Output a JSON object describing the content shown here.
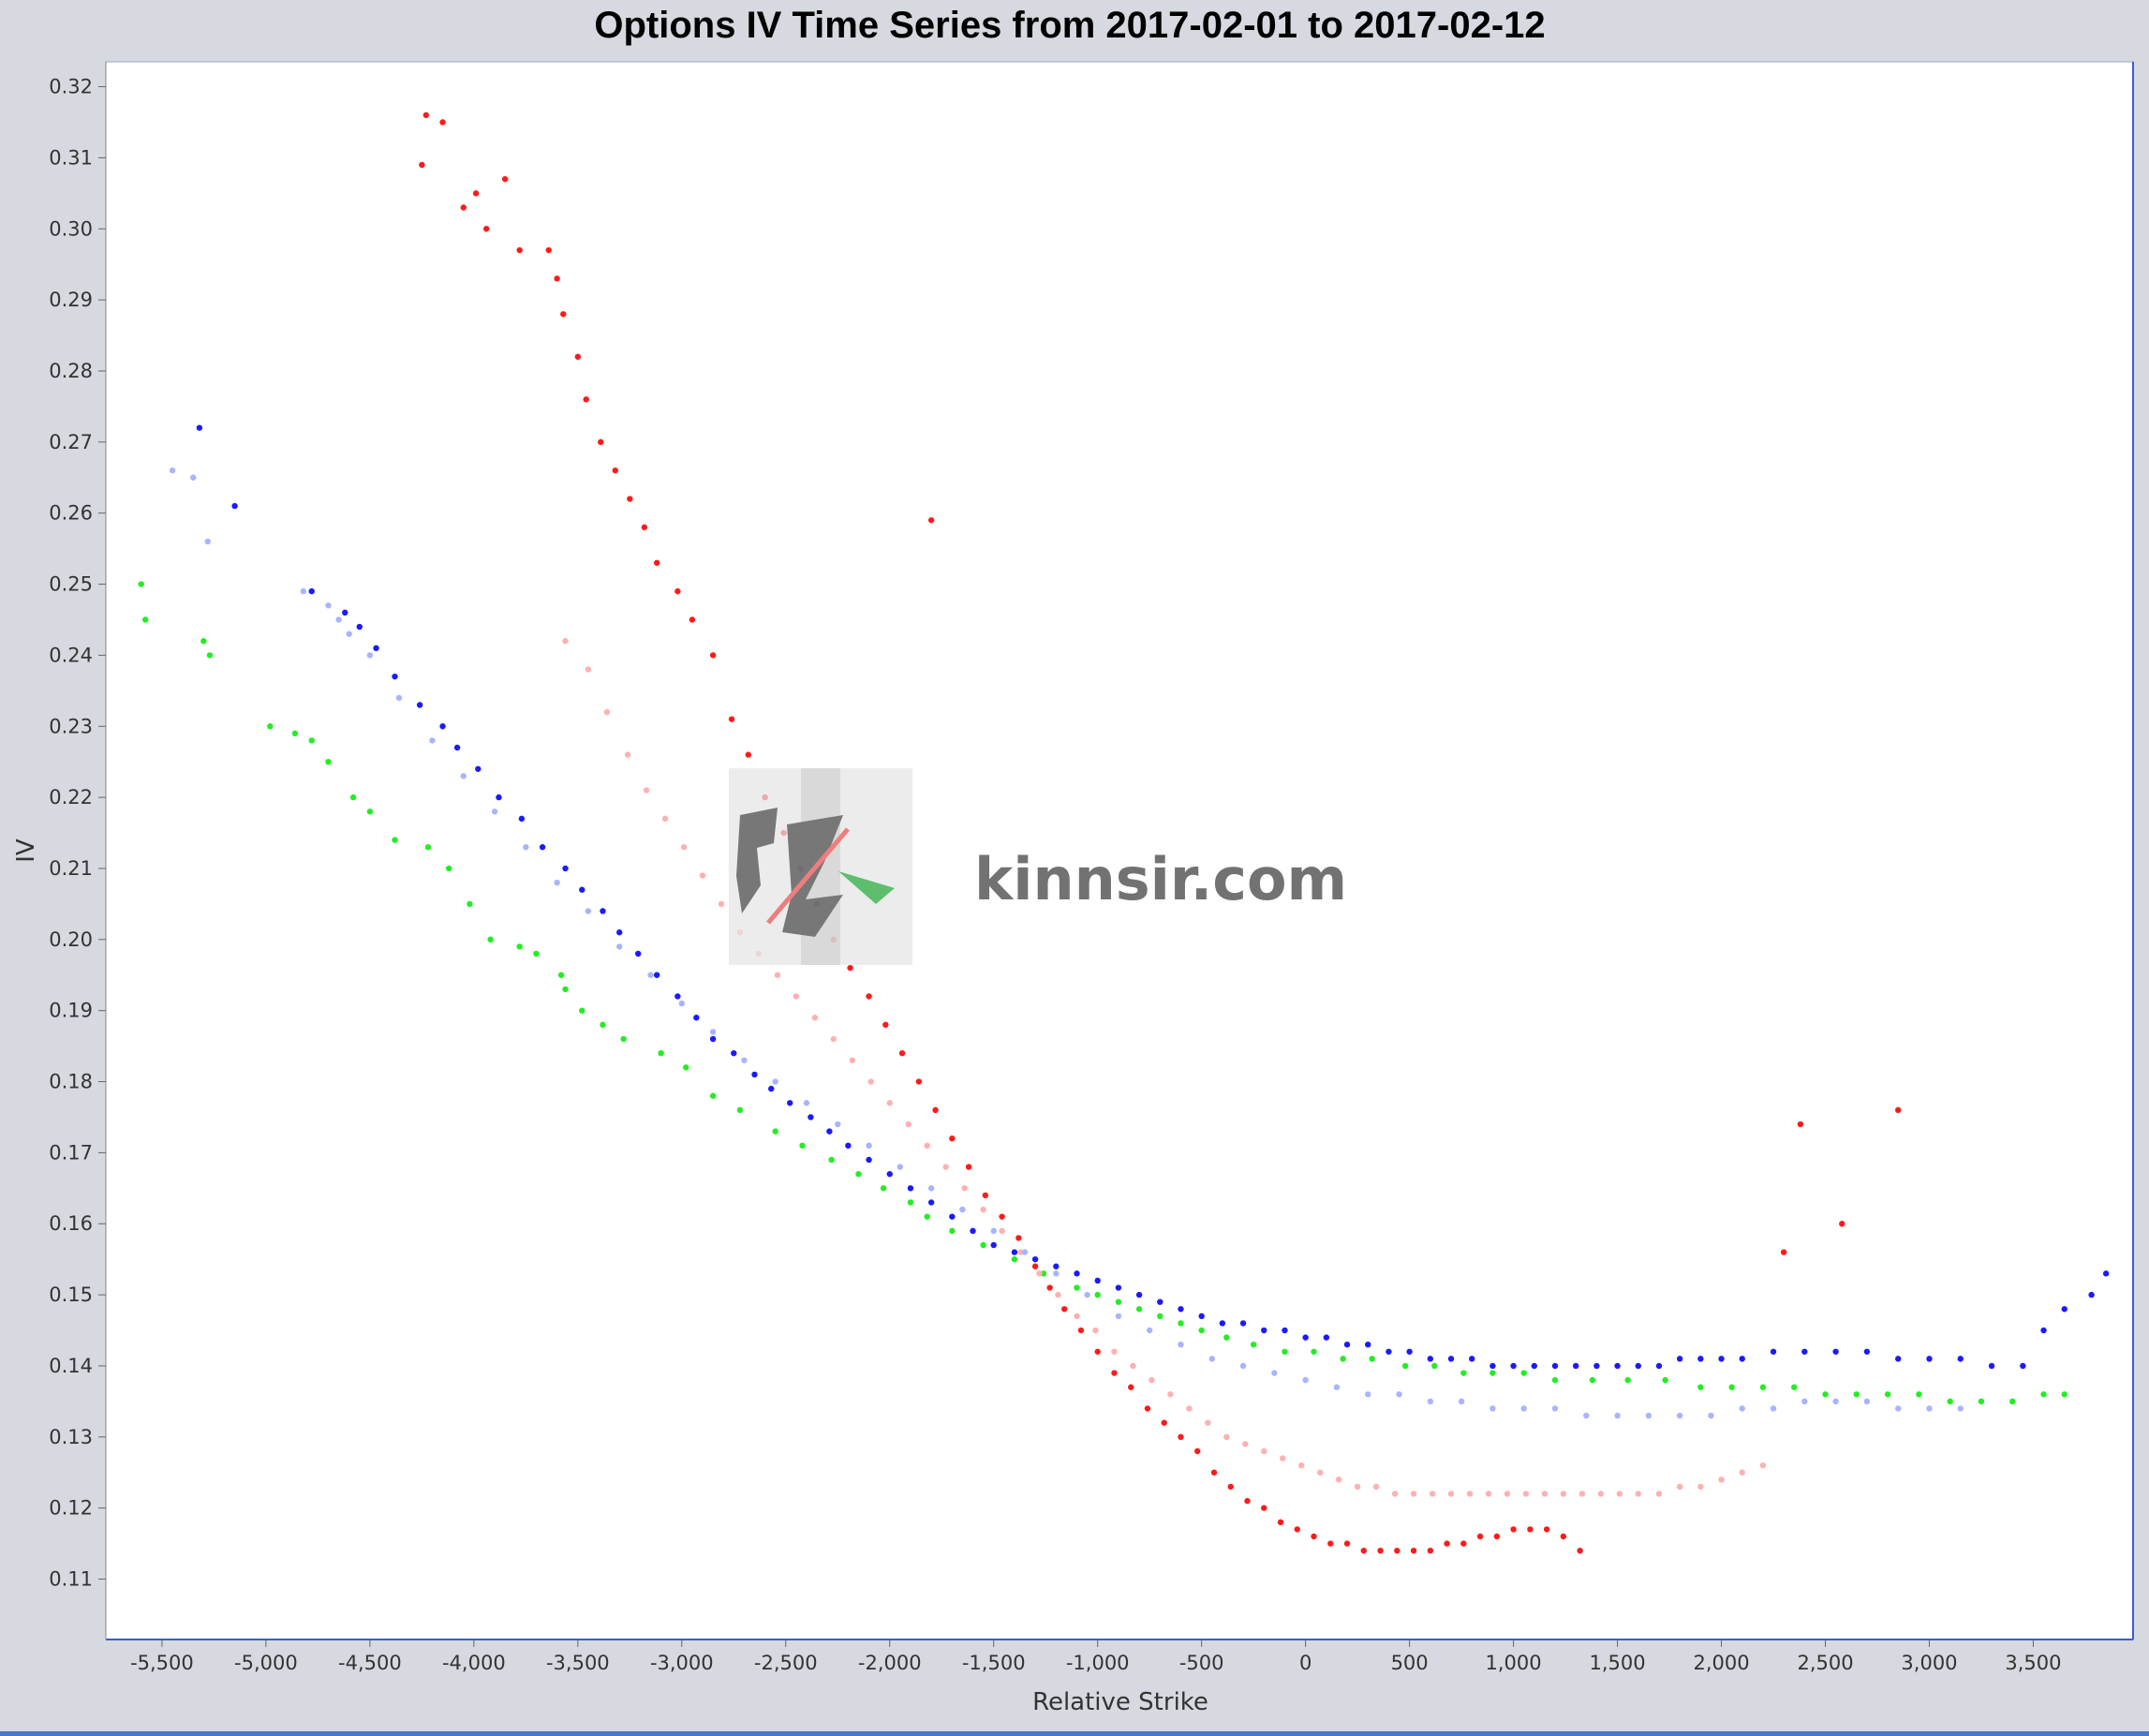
{
  "chart_data": {
    "type": "scatter",
    "title": "Options IV Time Series from 2017-02-01 to 2017-02-12",
    "xlabel": "Relative Strike",
    "ylabel": "IV",
    "xlim": [
      -5770,
      3980
    ],
    "ylim": [
      0.1015,
      0.3235
    ],
    "x_ticks": [
      -5500,
      -5000,
      -4500,
      -4000,
      -3500,
      -3000,
      -2500,
      -2000,
      -1500,
      -1000,
      -500,
      0,
      500,
      1000,
      1500,
      2000,
      2500,
      3000,
      3500
    ],
    "x_tick_labels": [
      "-5,500",
      "-5,000",
      "-4,500",
      "-4,000",
      "-3,500",
      "-3,000",
      "-2,500",
      "-2,000",
      "-1,500",
      "-1,000",
      "-500",
      "0",
      "500",
      "1,000",
      "1,500",
      "2,000",
      "2,500",
      "3,000",
      "3,500"
    ],
    "y_ticks": [
      0.11,
      0.12,
      0.13,
      0.14,
      0.15,
      0.16,
      0.17,
      0.18,
      0.19,
      0.2,
      0.21,
      0.22,
      0.23,
      0.24,
      0.25,
      0.26,
      0.27,
      0.28,
      0.29,
      0.3,
      0.31,
      0.32
    ],
    "y_tick_labels": [
      "0.11",
      "0.12",
      "0.13",
      "0.14",
      "0.15",
      "0.16",
      "0.17",
      "0.18",
      "0.19",
      "0.20",
      "0.21",
      "0.22",
      "0.23",
      "0.24",
      "0.25",
      "0.26",
      "0.27",
      "0.28",
      "0.29",
      "0.30",
      "0.31",
      "0.32"
    ],
    "grid": false,
    "legend": "none",
    "colors": {
      "blue": "#1a1aff",
      "green": "#22ee22",
      "red": "#ff1a1a",
      "pink": "#ffb0b0",
      "light_blue": "#a8b4ff"
    },
    "series": [
      {
        "color": "#22ee22",
        "x": [
          -5600,
          -5580,
          -5300,
          -5270,
          -4980,
          -4860,
          -4780,
          -4700,
          -4580,
          -4500,
          -4380,
          -4220,
          -4120,
          -4020,
          -3920,
          -3780,
          -3700,
          -3580,
          -3560,
          -3480,
          -3380,
          -3280,
          -3100,
          -2980,
          -2850,
          -2720,
          -2550,
          -2420,
          -2280,
          -2150,
          -2030,
          -1900,
          -1820,
          -1700,
          -1550,
          -1400,
          -1260,
          -1100,
          -1000,
          -900,
          -800,
          -700,
          -600,
          -500,
          -380,
          -250,
          -100,
          40,
          180,
          320,
          480,
          620,
          760,
          900,
          1050,
          1200,
          1380,
          1550,
          1730,
          1900,
          2050,
          2200,
          2350,
          2500,
          2650,
          2800,
          2950,
          3100,
          3250,
          3400,
          3550,
          3650
        ],
        "y": [
          0.25,
          0.245,
          0.242,
          0.24,
          0.23,
          0.229,
          0.228,
          0.225,
          0.22,
          0.218,
          0.214,
          0.213,
          0.21,
          0.205,
          0.2,
          0.199,
          0.198,
          0.195,
          0.193,
          0.19,
          0.188,
          0.186,
          0.184,
          0.182,
          0.178,
          0.176,
          0.173,
          0.171,
          0.169,
          0.167,
          0.165,
          0.163,
          0.161,
          0.159,
          0.157,
          0.155,
          0.153,
          0.151,
          0.15,
          0.149,
          0.148,
          0.147,
          0.146,
          0.145,
          0.144,
          0.143,
          0.142,
          0.142,
          0.141,
          0.141,
          0.14,
          0.14,
          0.139,
          0.139,
          0.139,
          0.138,
          0.138,
          0.138,
          0.138,
          0.137,
          0.137,
          0.137,
          0.137,
          0.136,
          0.136,
          0.136,
          0.136,
          0.135,
          0.135,
          0.135,
          0.136,
          0.136
        ]
      },
      {
        "color": "#1a1aff",
        "x": [
          -5320,
          -5150,
          -4780,
          -4620,
          -4550,
          -4470,
          -4380,
          -4260,
          -4150,
          -4080,
          -3980,
          -3880,
          -3770,
          -3670,
          -3560,
          -3480,
          -3380,
          -3300,
          -3210,
          -3120,
          -3020,
          -2930,
          -2850,
          -2750,
          -2650,
          -2570,
          -2480,
          -2380,
          -2290,
          -2200,
          -2100,
          -2000,
          -1900,
          -1800,
          -1700,
          -1600,
          -1500,
          -1400,
          -1300,
          -1200,
          -1100,
          -1000,
          -900,
          -800,
          -700,
          -600,
          -500,
          -400,
          -300,
          -200,
          -100,
          0,
          100,
          200,
          300,
          400,
          500,
          600,
          700,
          800,
          900,
          1000,
          1100,
          1200,
          1300,
          1400,
          1500,
          1600,
          1700,
          1800,
          1900,
          2000,
          2100,
          2250,
          2400,
          2550,
          2700,
          2850,
          3000,
          3150,
          3300,
          3450,
          3550,
          3650,
          3780,
          3850
        ],
        "y": [
          0.272,
          0.261,
          0.249,
          0.246,
          0.244,
          0.241,
          0.237,
          0.233,
          0.23,
          0.227,
          0.224,
          0.22,
          0.217,
          0.213,
          0.21,
          0.207,
          0.204,
          0.201,
          0.198,
          0.195,
          0.192,
          0.189,
          0.186,
          0.184,
          0.181,
          0.179,
          0.177,
          0.175,
          0.173,
          0.171,
          0.169,
          0.167,
          0.165,
          0.163,
          0.161,
          0.159,
          0.157,
          0.156,
          0.155,
          0.154,
          0.153,
          0.152,
          0.151,
          0.15,
          0.149,
          0.148,
          0.147,
          0.146,
          0.146,
          0.145,
          0.145,
          0.144,
          0.144,
          0.143,
          0.143,
          0.142,
          0.142,
          0.141,
          0.141,
          0.141,
          0.14,
          0.14,
          0.14,
          0.14,
          0.14,
          0.14,
          0.14,
          0.14,
          0.14,
          0.141,
          0.141,
          0.141,
          0.141,
          0.142,
          0.142,
          0.142,
          0.142,
          0.141,
          0.141,
          0.141,
          0.14,
          0.14,
          0.145,
          0.148,
          0.15,
          0.153
        ]
      },
      {
        "color": "#ff1a1a",
        "x": [
          -4230,
          -4150,
          -4250,
          -4050,
          -3990,
          -3940,
          -3850,
          -3780,
          -3640,
          -3600,
          -3570,
          -3500,
          -3460,
          -3390,
          -3320,
          -3250,
          -3180,
          -3120,
          -3020,
          -2950,
          -2850,
          -2760,
          -2680,
          -2600,
          -2510,
          -2430,
          -2350,
          -2270,
          -2190,
          -2100,
          -2020,
          -1940,
          -1860,
          -1780,
          -1700,
          -1620,
          -1540,
          -1460,
          -1380,
          -1300,
          -1230,
          -1160,
          -1080,
          -1000,
          -920,
          -840,
          -760,
          -680,
          -600,
          -520,
          -440,
          -360,
          -280,
          -200,
          -120,
          -40,
          40,
          120,
          200,
          280,
          360,
          440,
          520,
          600,
          680,
          760,
          840,
          920,
          1000,
          1080,
          1160,
          1240,
          1320,
          -1800,
          2300,
          2380,
          2580,
          2850
        ],
        "y": [
          0.316,
          0.315,
          0.309,
          0.303,
          0.305,
          0.3,
          0.307,
          0.297,
          0.297,
          0.293,
          0.288,
          0.282,
          0.276,
          0.27,
          0.266,
          0.262,
          0.258,
          0.253,
          0.249,
          0.245,
          0.24,
          0.231,
          0.226,
          0.22,
          0.215,
          0.21,
          0.205,
          0.2,
          0.196,
          0.192,
          0.188,
          0.184,
          0.18,
          0.176,
          0.172,
          0.168,
          0.164,
          0.161,
          0.158,
          0.154,
          0.151,
          0.148,
          0.145,
          0.142,
          0.139,
          0.137,
          0.134,
          0.132,
          0.13,
          0.128,
          0.125,
          0.123,
          0.121,
          0.12,
          0.118,
          0.117,
          0.116,
          0.115,
          0.115,
          0.114,
          0.114,
          0.114,
          0.114,
          0.114,
          0.115,
          0.115,
          0.116,
          0.116,
          0.117,
          0.117,
          0.117,
          0.116,
          0.114,
          0.259,
          0.156,
          0.174,
          0.16,
          0.176
        ]
      },
      {
        "color": "#ffb0b0",
        "x": [
          -3560,
          -3450,
          -3360,
          -3260,
          -3170,
          -3080,
          -2990,
          -2900,
          -2810,
          -2720,
          -2630,
          -2540,
          -2450,
          -2360,
          -2270,
          -2180,
          -2090,
          -2000,
          -1910,
          -1820,
          -1730,
          -1640,
          -1550,
          -1460,
          -1370,
          -1280,
          -1190,
          -1100,
          -1010,
          -920,
          -830,
          -740,
          -650,
          -560,
          -470,
          -380,
          -290,
          -200,
          -110,
          -20,
          70,
          160,
          250,
          340,
          430,
          520,
          610,
          700,
          790,
          880,
          970,
          1060,
          1150,
          1240,
          1330,
          1420,
          1510,
          1600,
          1700,
          1800,
          1900,
          2000,
          2100,
          2200
        ],
        "y": [
          0.242,
          0.238,
          0.232,
          0.226,
          0.221,
          0.217,
          0.213,
          0.209,
          0.205,
          0.201,
          0.198,
          0.195,
          0.192,
          0.189,
          0.186,
          0.183,
          0.18,
          0.177,
          0.174,
          0.171,
          0.168,
          0.165,
          0.162,
          0.159,
          0.156,
          0.153,
          0.15,
          0.147,
          0.145,
          0.142,
          0.14,
          0.138,
          0.136,
          0.134,
          0.132,
          0.13,
          0.129,
          0.128,
          0.127,
          0.126,
          0.125,
          0.124,
          0.123,
          0.123,
          0.122,
          0.122,
          0.122,
          0.122,
          0.122,
          0.122,
          0.122,
          0.122,
          0.122,
          0.122,
          0.122,
          0.122,
          0.122,
          0.122,
          0.122,
          0.123,
          0.123,
          0.124,
          0.125,
          0.126
        ]
      },
      {
        "color": "#a8b4ff",
        "x": [
          -5450,
          -5350,
          -5280,
          -4820,
          -4700,
          -4650,
          -4600,
          -4500,
          -4360,
          -4200,
          -4050,
          -3900,
          -3750,
          -3600,
          -3450,
          -3300,
          -3150,
          -3000,
          -2850,
          -2700,
          -2550,
          -2400,
          -2250,
          -2100,
          -1950,
          -1800,
          -1650,
          -1500,
          -1350,
          -1200,
          -1050,
          -900,
          -750,
          -600,
          -450,
          -300,
          -150,
          0,
          150,
          300,
          450,
          600,
          750,
          900,
          1050,
          1200,
          1350,
          1500,
          1650,
          1800,
          1950,
          2100,
          2250,
          2400,
          2550,
          2700,
          2850,
          3000,
          3150
        ],
        "y": [
          0.266,
          0.265,
          0.256,
          0.249,
          0.247,
          0.245,
          0.243,
          0.24,
          0.234,
          0.228,
          0.223,
          0.218,
          0.213,
          0.208,
          0.204,
          0.199,
          0.195,
          0.191,
          0.187,
          0.183,
          0.18,
          0.177,
          0.174,
          0.171,
          0.168,
          0.165,
          0.162,
          0.159,
          0.156,
          0.153,
          0.15,
          0.147,
          0.145,
          0.143,
          0.141,
          0.14,
          0.139,
          0.138,
          0.137,
          0.136,
          0.136,
          0.135,
          0.135,
          0.134,
          0.134,
          0.134,
          0.133,
          0.133,
          0.133,
          0.133,
          0.133,
          0.134,
          0.134,
          0.135,
          0.135,
          0.135,
          0.134,
          0.134,
          0.134
        ]
      }
    ]
  },
  "watermark": {
    "text": "kinnsir.com"
  }
}
